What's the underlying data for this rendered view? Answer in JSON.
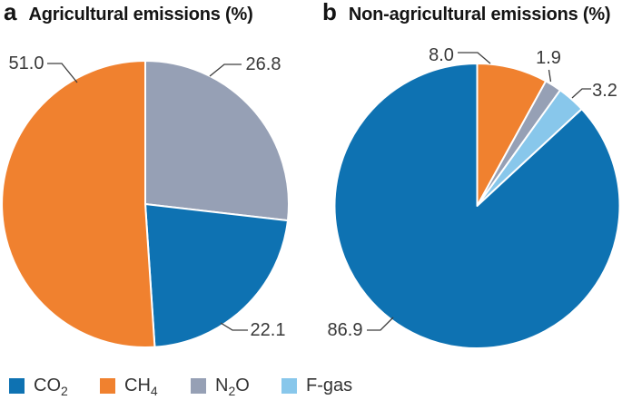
{
  "figure": {
    "background": "#ffffff",
    "panels": {
      "a": {
        "letter": "a",
        "title": "Agricultural emissions (%)"
      },
      "b": {
        "letter": "b",
        "title": "Non-agricultural emissions (%)"
      }
    }
  },
  "colors": {
    "co2_blue": "#0E72B2",
    "ch4_orange": "#F0812F",
    "n2o_gray": "#96A0B5",
    "fgas_lightblue": "#88C7EB",
    "slice_border": "#ffffff",
    "leader_line": "#3d3d3d",
    "label_text": "#383838",
    "title_text": "#141414"
  },
  "legend": {
    "items": [
      {
        "name": "CO2",
        "main": "CO",
        "sub": "2",
        "suffix": "",
        "color": "#0E72B2"
      },
      {
        "name": "CH4",
        "main": "CH",
        "sub": "4",
        "suffix": "",
        "color": "#F0812F"
      },
      {
        "name": "N2O",
        "main": "N",
        "sub": "2",
        "suffix": "O",
        "color": "#96A0B5"
      },
      {
        "name": "F-gas",
        "main": "F-gas",
        "sub": "",
        "suffix": "",
        "color": "#88C7EB"
      }
    ]
  },
  "chart_data": [
    {
      "type": "pie",
      "panel": "a",
      "title": "Agricultural emissions (%)",
      "units": "%",
      "start_angle_deg": 0,
      "direction": "clockwise",
      "categories": [
        "N2O",
        "CO2",
        "CH4"
      ],
      "values": [
        26.8,
        22.1,
        51.0
      ],
      "slices": [
        {
          "label": "N2O",
          "value": 26.8,
          "display": "26.8",
          "color": "#96A0B5"
        },
        {
          "label": "CO2",
          "value": 22.1,
          "display": "22.1",
          "color": "#0E72B2"
        },
        {
          "label": "CH4",
          "value": 51.0,
          "display": "51.0",
          "color": "#F0812F"
        }
      ]
    },
    {
      "type": "pie",
      "panel": "b",
      "title": "Non-agricultural emissions (%)",
      "units": "%",
      "start_angle_deg": 0,
      "direction": "clockwise",
      "categories": [
        "CH4",
        "N2O",
        "F-gas",
        "CO2"
      ],
      "values": [
        8.0,
        1.9,
        3.2,
        86.9
      ],
      "slices": [
        {
          "label": "CH4",
          "value": 8.0,
          "display": "8.0",
          "color": "#F0812F"
        },
        {
          "label": "N2O",
          "value": 1.9,
          "display": "1.9",
          "color": "#96A0B5"
        },
        {
          "label": "F-gas",
          "value": 3.2,
          "display": "3.2",
          "color": "#88C7EB"
        },
        {
          "label": "CO2",
          "value": 86.9,
          "display": "86.9",
          "color": "#0E72B2"
        }
      ]
    }
  ]
}
